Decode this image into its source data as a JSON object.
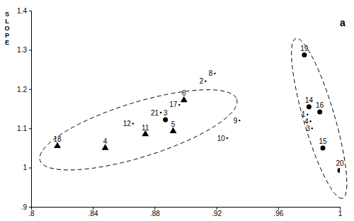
{
  "chart_data": {
    "type": "scatter",
    "title": "a",
    "ylabel": "SLOPE",
    "xlim": [
      0.8,
      1
    ],
    "ylim": [
      0.9,
      1.4
    ],
    "xticks": [
      {
        "value": 0.8,
        "label": ".8"
      },
      {
        "value": 0.84,
        "label": ".84"
      },
      {
        "value": 0.88,
        "label": ".88"
      },
      {
        "value": 0.92,
        "label": ".92"
      },
      {
        "value": 0.96,
        "label": ".96"
      },
      1
    ],
    "yticks": [
      {
        "value": 0.9,
        "label": ".9"
      },
      1,
      1.1,
      1.2,
      1.3,
      1.4
    ],
    "series": [
      {
        "marker": "triangle",
        "color": "#000000",
        "labels": [
          "18",
          "4",
          "11",
          "5",
          "6"
        ],
        "x": [
          0.817,
          0.848,
          0.874,
          0.892,
          0.899
        ],
        "values": [
          1.055,
          1.05,
          1.085,
          1.093,
          1.172
        ]
      },
      {
        "marker": "circle",
        "color": "#000000",
        "labels": [
          "3",
          "19",
          "14",
          "16",
          "15",
          "20"
        ],
        "x": [
          0.887,
          0.977,
          0.98,
          0.987,
          0.989,
          1.0
        ],
        "values": [
          1.122,
          1.287,
          1.155,
          1.142,
          1.05,
          0.993
        ]
      },
      {
        "marker": "dot",
        "color": "#000000",
        "labels": [
          "12",
          "21",
          "17",
          "2",
          "8",
          "9",
          "10",
          "1",
          "4",
          "3"
        ],
        "x": [
          0.866,
          0.884,
          0.896,
          0.913,
          0.919,
          0.935,
          0.927,
          0.979,
          0.981,
          0.982
        ],
        "values": [
          1.112,
          1.14,
          1.16,
          1.22,
          1.24,
          1.12,
          1.075,
          1.135,
          1.118,
          1.1
        ]
      }
    ]
  }
}
